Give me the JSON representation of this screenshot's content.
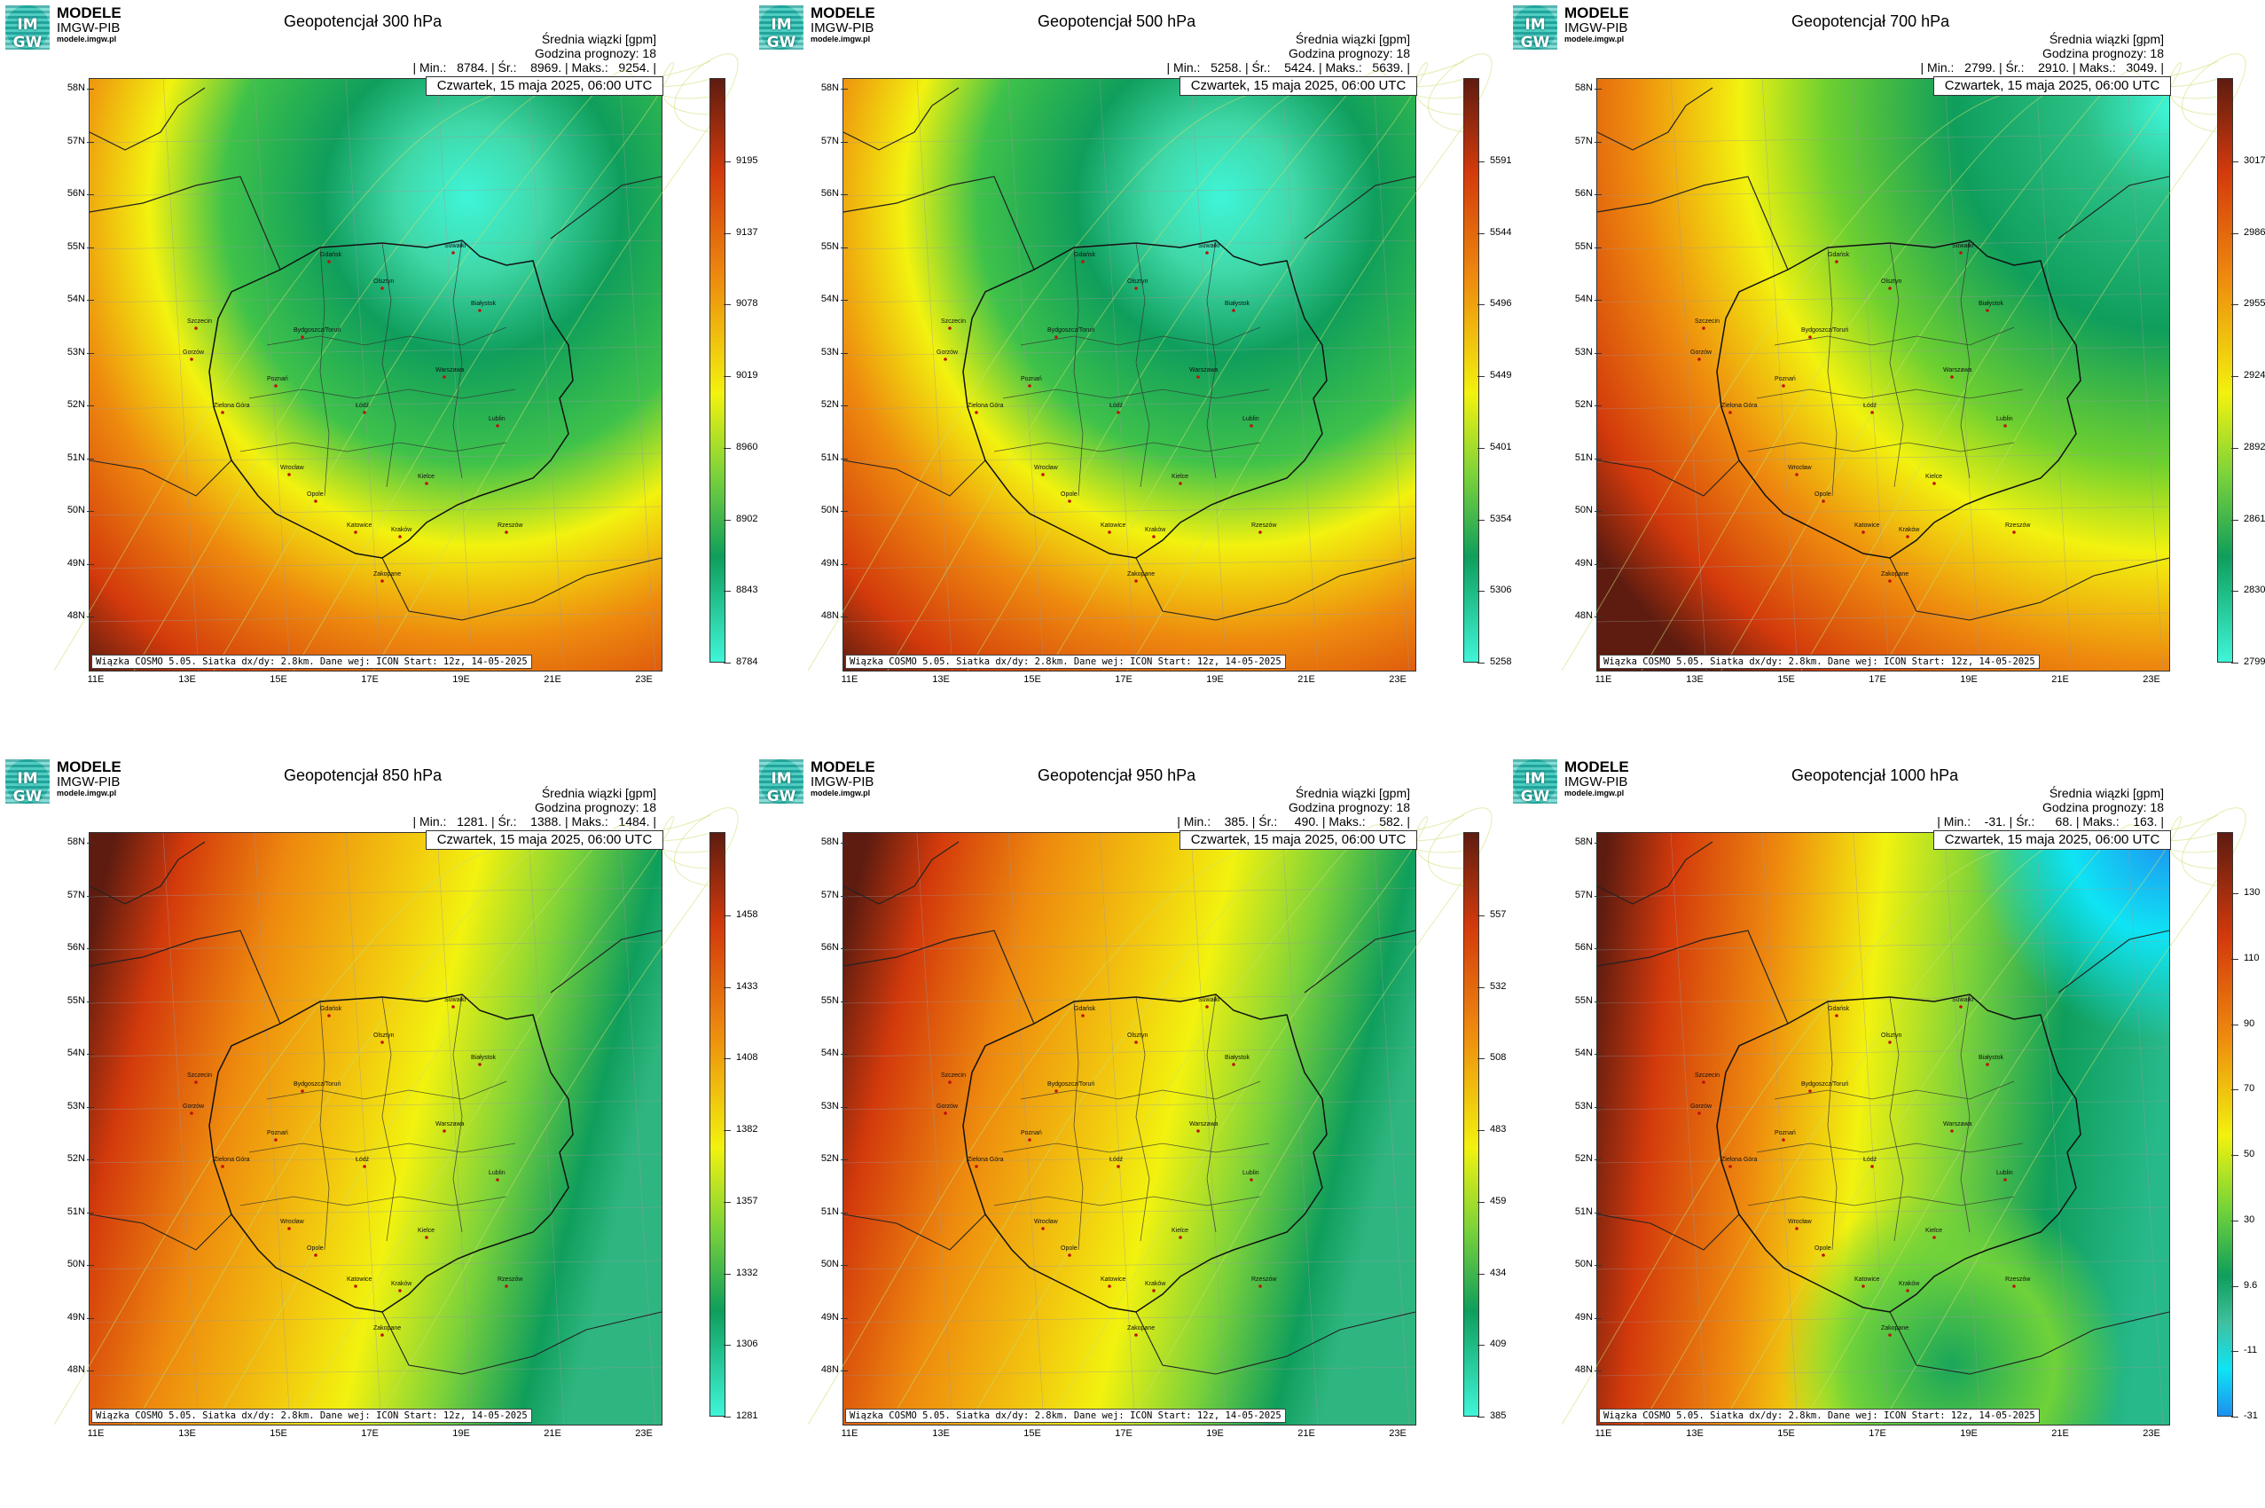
{
  "brand": {
    "name": "MODELE",
    "sub": "IMGW-PIB",
    "url": "modele.imgw.pl",
    "logo_text": "IM GW"
  },
  "common": {
    "subtitle": "Średnia wiązki [gpm]",
    "forecast_hour": "Godzina prognozy: 18",
    "date": "Czwartek, 15 maja 2025, 06:00 UTC",
    "footer": "Wiązka COSMO 5.05. Siatka dx/dy: 2.8km. Dane wej: ICON Start: 12z, 14-05-2025",
    "lat_labels": [
      "58N",
      "57N",
      "56N",
      "55N",
      "54N",
      "53N",
      "52N",
      "51N",
      "50N",
      "49N",
      "48N"
    ],
    "lon_labels": [
      "11E",
      "13E",
      "15E",
      "17E",
      "19E",
      "21E",
      "23E"
    ],
    "cities": [
      "Gdańsk",
      "Suwałki",
      "Olsztyn",
      "Białystok",
      "Szczecin",
      "Bydgoszcz/Toruń",
      "Gorzów",
      "Poznań",
      "Warszawa",
      "Zielona Góra",
      "Łódź",
      "Lublin",
      "Wrocław",
      "Kielce",
      "Opole",
      "Rzeszów",
      "Katowice",
      "Kraków",
      "Zakopane"
    ]
  },
  "colors": {
    "low": "#3ff5d8",
    "green": "#0f9e5c",
    "yellow": "#f2f20f",
    "orange": "#ee8a0e",
    "red": "#d33a0c",
    "dark": "#5e1c10",
    "cyan": "#0fe4f4",
    "blue": "#1e90f0"
  },
  "panels": [
    {
      "title": "Geopotencjał 300 hPa",
      "stats": "| Min.:   8784. | Śr.:    8969. | Maks.:   9254. |",
      "ticks": [
        "9195",
        "9137",
        "9078",
        "9019",
        "8960",
        "8902",
        "8843",
        "8784"
      ],
      "field": "trough"
    },
    {
      "title": "Geopotencjał 500 hPa",
      "stats": "| Min.:   5258. | Śr.:    5424. | Maks.:   5639. |",
      "ticks": [
        "5591",
        "5544",
        "5496",
        "5449",
        "5401",
        "5354",
        "5306",
        "5258"
      ],
      "field": "trough"
    },
    {
      "title": "Geopotencjał 700 hPa",
      "stats": "| Min.:   2799. | Śr.:    2910. | Maks.:   3049. |",
      "ticks": [
        "3017",
        "2986",
        "2955",
        "2924",
        "2892",
        "2861",
        "2830",
        "2799"
      ],
      "field": "northeast"
    },
    {
      "title": "Geopotencjał 850 hPa",
      "stats": "| Min.:   1281. | Śr.:    1388. | Maks.:   1484. |",
      "ticks": [
        "1458",
        "1433",
        "1408",
        "1382",
        "1357",
        "1332",
        "1306",
        "1281"
      ],
      "field": "gradient"
    },
    {
      "title": "Geopotencjał 950 hPa",
      "stats": "| Min.:    385. | Śr.:     490. | Maks.:    582. |",
      "ticks": [
        "557",
        "532",
        "508",
        "483",
        "459",
        "434",
        "409",
        "385"
      ],
      "field": "gradient"
    },
    {
      "title": "Geopotencjał 1000 hPa",
      "stats": "| Min.:    -31. | Śr.:      68. | Maks.:    163. |",
      "ticks": [
        "130",
        "110",
        "90",
        "70",
        "50",
        "30",
        "9.6",
        "-11",
        "-31"
      ],
      "field": "low1000"
    }
  ]
}
